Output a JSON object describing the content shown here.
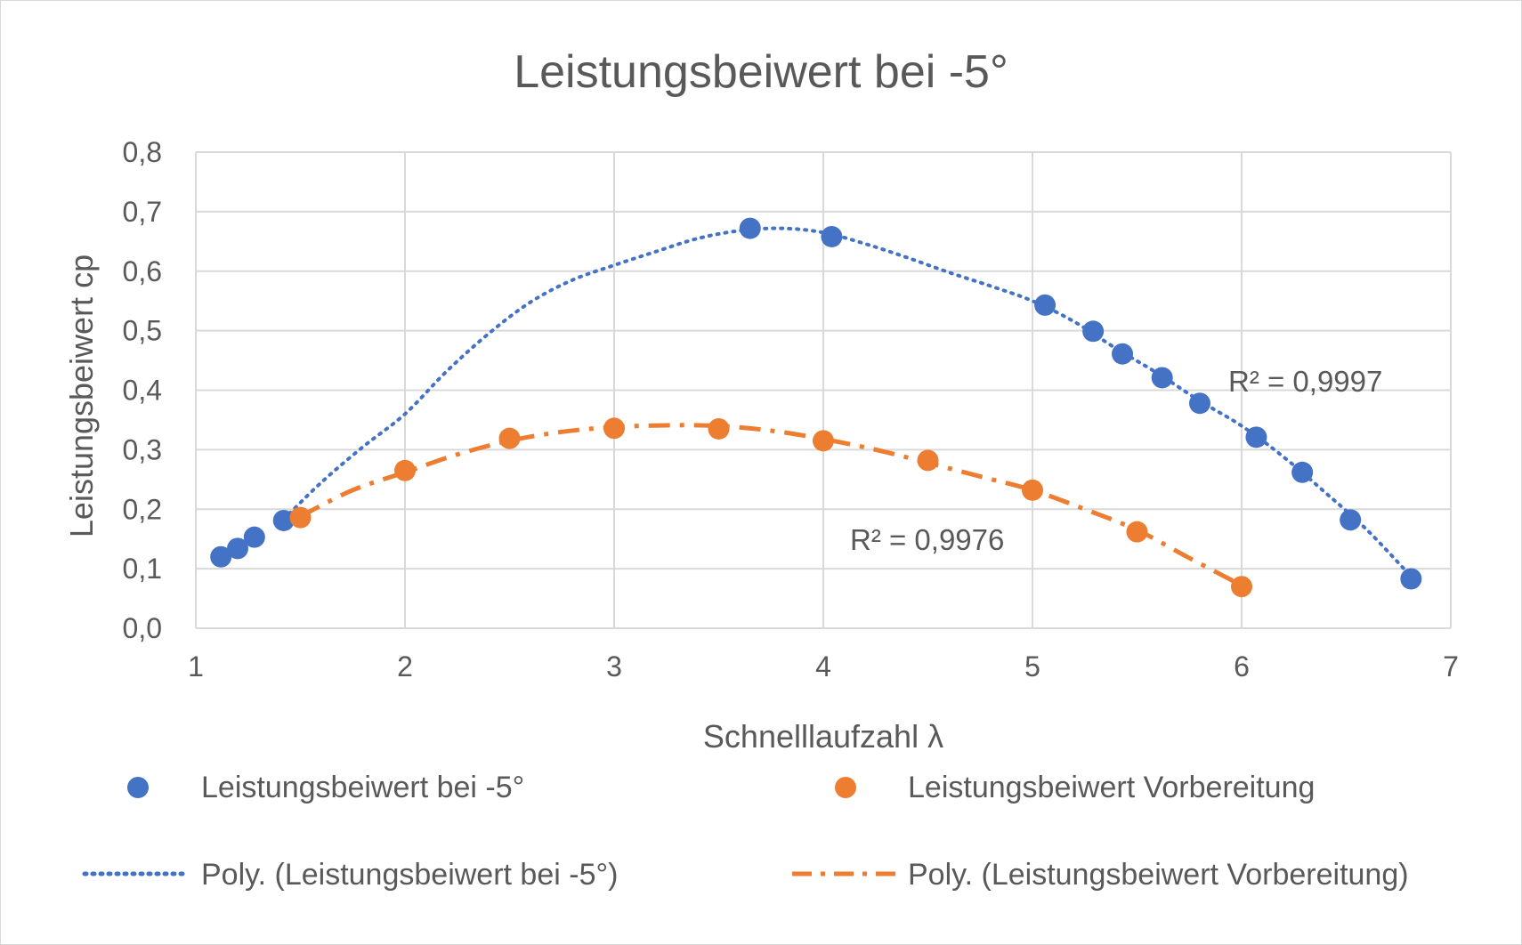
{
  "chart_data": {
    "type": "scatter",
    "title": "Leistungsbeiwert bei -5°",
    "xlabel": "Schnelllaufzahl λ",
    "ylabel": "Leistungsbeiwert cp",
    "xlim": [
      1,
      7
    ],
    "ylim": [
      0,
      0.8
    ],
    "x_ticks": [
      "1",
      "2",
      "3",
      "4",
      "5",
      "6",
      "7"
    ],
    "y_ticks": [
      "0,0",
      "0,1",
      "0,2",
      "0,3",
      "0,4",
      "0,5",
      "0,6",
      "0,7",
      "0,8"
    ],
    "grid": true,
    "legend_position": "bottom",
    "series": [
      {
        "name": "Leistungsbeiwert bei -5°",
        "color": "#4472c4",
        "x": [
          1.12,
          1.2,
          1.28,
          1.42,
          3.65,
          4.04,
          5.06,
          5.29,
          5.43,
          5.62,
          5.8,
          6.07,
          6.29,
          6.52,
          6.81
        ],
        "y": [
          0.12,
          0.134,
          0.153,
          0.181,
          0.672,
          0.658,
          0.543,
          0.499,
          0.461,
          0.421,
          0.378,
          0.321,
          0.262,
          0.182,
          0.083
        ]
      },
      {
        "name": "Leistungsbeiwert Vorbereitung",
        "color": "#ed7d31",
        "x": [
          1.5,
          2.0,
          2.5,
          3.0,
          3.5,
          4.0,
          4.5,
          5.0,
          5.5,
          6.0
        ],
        "y": [
          0.186,
          0.265,
          0.319,
          0.336,
          0.335,
          0.315,
          0.282,
          0.232,
          0.162,
          0.07
        ]
      }
    ],
    "trendlines": [
      {
        "name": "Poly. (Leistungsbeiwert bei -5°)",
        "color": "#4472c4",
        "style": "dotted",
        "r2_label": "R² = 0,9997",
        "x": [
          1.42,
          1.6,
          1.8,
          2.0,
          2.2,
          2.4,
          2.6,
          2.8,
          3.0,
          3.2,
          3.4,
          3.6,
          3.8,
          4.0,
          4.2,
          4.4,
          4.6,
          4.8,
          5.0,
          5.2,
          5.4,
          5.6,
          5.8,
          6.0,
          6.2,
          6.4,
          6.6,
          6.81
        ],
        "y": [
          0.183,
          0.245,
          0.305,
          0.36,
          0.432,
          0.495,
          0.548,
          0.585,
          0.61,
          0.633,
          0.655,
          0.668,
          0.672,
          0.665,
          0.646,
          0.623,
          0.598,
          0.575,
          0.55,
          0.515,
          0.47,
          0.428,
          0.382,
          0.34,
          0.288,
          0.228,
          0.165,
          0.087
        ]
      },
      {
        "name": "Poly. (Leistungsbeiwert Vorbereitung)",
        "color": "#ed7d31",
        "style": "dash-dot",
        "r2_label": "R² = 0,9976",
        "x": [
          1.5,
          1.75,
          2.0,
          2.25,
          2.5,
          2.75,
          3.0,
          3.25,
          3.5,
          3.75,
          4.0,
          4.25,
          4.5,
          4.75,
          5.0,
          5.25,
          5.5,
          5.75,
          6.0
        ],
        "y": [
          0.188,
          0.232,
          0.262,
          0.292,
          0.315,
          0.33,
          0.338,
          0.341,
          0.34,
          0.332,
          0.318,
          0.3,
          0.278,
          0.255,
          0.232,
          0.2,
          0.165,
          0.118,
          0.072
        ]
      }
    ]
  }
}
